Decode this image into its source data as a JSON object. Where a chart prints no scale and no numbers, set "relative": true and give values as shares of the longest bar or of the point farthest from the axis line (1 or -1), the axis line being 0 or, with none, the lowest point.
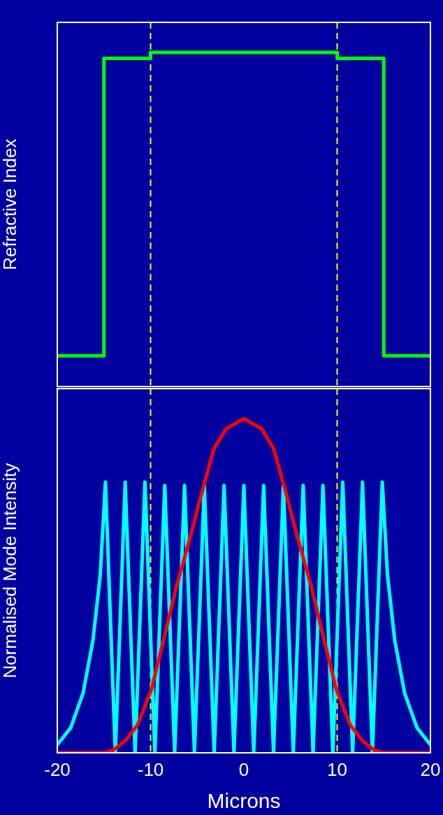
{
  "chart_data": [
    {
      "type": "line",
      "ylabel": "Refractive Index",
      "relative": true,
      "xlim": [
        -20,
        20
      ],
      "xticks": [
        -20,
        -10,
        0,
        10,
        20
      ],
      "tick_labels": false,
      "series": [
        {
          "color": "#00ff00",
          "x": [
            -20,
            -15,
            -15,
            -10,
            -10,
            10,
            10,
            15,
            15,
            20
          ],
          "values": [
            0.092,
            0.092,
            0.982,
            0.982,
            1,
            1,
            0.982,
            0.982,
            0.092,
            0.092
          ]
        }
      ],
      "ref_lines": [
        {
          "axis": "x",
          "value": -10,
          "color": "#ffff00",
          "line_style": "dashed"
        },
        {
          "axis": "x",
          "value": 10,
          "color": "#ffff00",
          "line_style": "dashed"
        }
      ]
    },
    {
      "type": "line",
      "xlabel": "Microns",
      "ylabel": "Normalised Mode Intensity",
      "relative": true,
      "xlim": [
        -20,
        20
      ],
      "xticks": [
        -20,
        -10,
        0,
        10,
        20
      ],
      "tick_labels": "x",
      "series": [
        {
          "color": "#ff0000",
          "x": [
            -20,
            -15,
            -14,
            -12.7,
            -11.4,
            -9.9,
            -8.5,
            -7.2,
            -5.9,
            -4.3,
            -3.2,
            -1.9,
            0,
            1.9,
            3.2,
            4.3,
            5.9,
            7.2,
            8.5,
            9.9,
            11.4,
            12.7,
            14,
            15,
            20
          ],
          "values": [
            0,
            0,
            0.008,
            0.036,
            0.083,
            0.19,
            0.35,
            0.5,
            0.63,
            0.8,
            0.91,
            0.97,
            1,
            0.97,
            0.91,
            0.8,
            0.63,
            0.5,
            0.35,
            0.19,
            0.083,
            0.036,
            0.008,
            0,
            0
          ]
        },
        {
          "color": "#00ffff",
          "x": [
            -20,
            -18.56,
            -17.24,
            -16.18,
            -15.39,
            -14.84,
            -13.78,
            -12.72,
            -11.66,
            -10.6,
            -9.54,
            -8.48,
            -7.42,
            -6.36,
            -5.3,
            -4.24,
            -3.18,
            -2.12,
            -1.06,
            0,
            1.06,
            2.12,
            3.18,
            4.24,
            5.3,
            6.36,
            7.42,
            8.48,
            9.54,
            10.6,
            11.66,
            12.72,
            13.78,
            14.84,
            15.39,
            16.18,
            17.24,
            18.56,
            20
          ],
          "values": [
            0.024,
            0.075,
            0.178,
            0.336,
            0.534,
            0.81,
            0,
            0.81,
            0,
            0.81,
            0,
            0.8,
            0,
            0.8,
            0,
            0.8,
            0,
            0.8,
            0,
            0.8,
            0,
            0.8,
            0,
            0.8,
            0,
            0.8,
            0,
            0.8,
            0,
            0.81,
            0,
            0.81,
            0,
            0.81,
            0.534,
            0.336,
            0.178,
            0.075,
            0.024
          ]
        }
      ],
      "ref_lines": [
        {
          "axis": "x",
          "value": -10,
          "color": "#ffff00",
          "line_style": "dashed"
        },
        {
          "axis": "x",
          "value": 10,
          "color": "#ffff00",
          "line_style": "dashed"
        }
      ]
    }
  ]
}
